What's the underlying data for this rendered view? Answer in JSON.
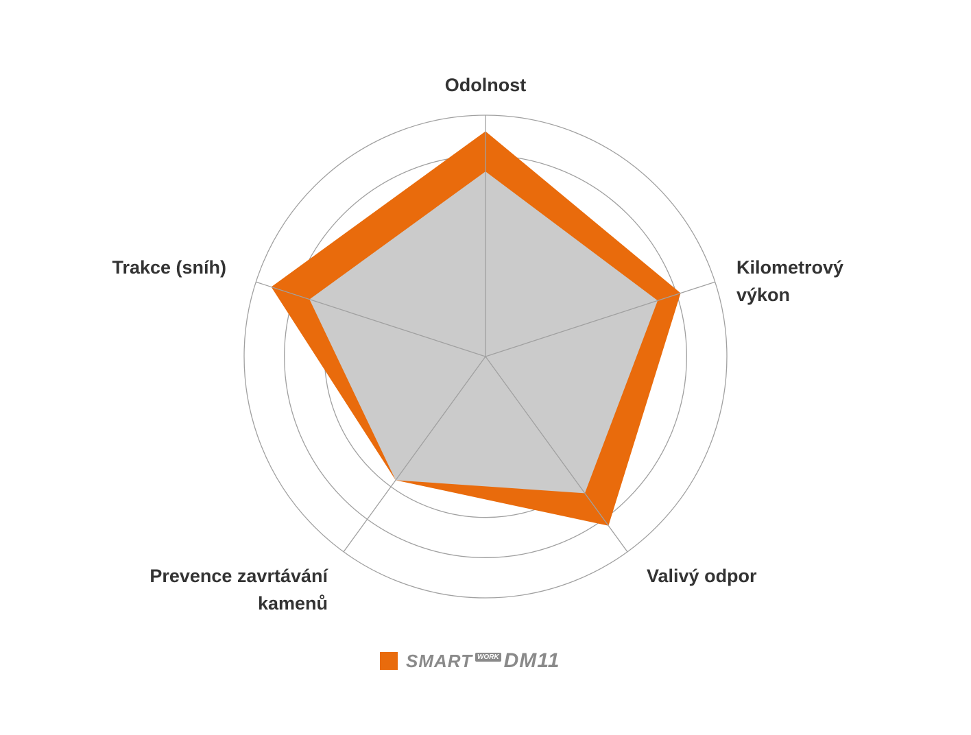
{
  "chart_data": {
    "type": "radar",
    "axes": [
      "Odolnost",
      "Kilometrový výkon",
      "Valivý odpor",
      "Prevence zavrtávání kamenů",
      "Trakce (sníh)"
    ],
    "axis_label_lines": [
      [
        "Odolnost"
      ],
      [
        "Kilometrový",
        "výkon"
      ],
      [
        "Valivý odpor"
      ],
      [
        "Prevence zavrtávání",
        "kamenů"
      ],
      [
        "Trakce (sníh)"
      ]
    ],
    "rings": 6,
    "range": [
      0,
      6
    ],
    "series": [
      {
        "name": "SmartWORK DM11",
        "values": [
          5.6,
          5.1,
          5.2,
          3.8,
          5.6
        ],
        "color": "#e96b0c"
      },
      {
        "values": [
          4.6,
          4.5,
          4.2,
          3.8,
          4.6
        ],
        "color": "#cbcbcb"
      }
    ],
    "grid_color": "#a0a0a0",
    "legend_position": "bottom"
  },
  "legend": {
    "brand": "SMART",
    "badge": "WORK",
    "model": "DM11",
    "swatch_color": "#e96b0c"
  }
}
